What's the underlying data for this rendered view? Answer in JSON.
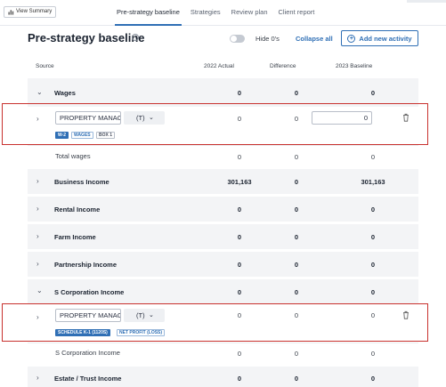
{
  "topbar": {
    "view_summary": "View Summary",
    "tabs": [
      "Pre-strategy baseline",
      "Strategies",
      "Review plan",
      "Client report"
    ]
  },
  "heading": {
    "title": "Pre-strategy baseline",
    "info": "i",
    "hide_zeros": "Hide 0's",
    "collapse_all": "Collapse all",
    "add_activity": "Add new activity"
  },
  "columns": {
    "source": "Source",
    "actual": "2022 Actual",
    "difference": "Difference",
    "baseline": "2023 Baseline"
  },
  "wages": {
    "label": "Wages",
    "actual": "0",
    "difference": "0",
    "baseline": "0",
    "activity": {
      "name": "PROPERTY MANAG",
      "type": "(T)",
      "actual": "0",
      "difference": "0",
      "baseline": "0",
      "badges": [
        "W-2",
        "WAGES",
        "BOX 1"
      ]
    },
    "total_label": "Total wages",
    "total": {
      "actual": "0",
      "difference": "0",
      "baseline": "0"
    }
  },
  "business": {
    "label": "Business Income",
    "actual": "301,163",
    "difference": "0",
    "baseline": "301,163"
  },
  "rental": {
    "label": "Rental Income",
    "actual": "0",
    "difference": "0",
    "baseline": "0"
  },
  "farm": {
    "label": "Farm Income",
    "actual": "0",
    "difference": "0",
    "baseline": "0"
  },
  "partnership": {
    "label": "Partnership Income",
    "actual": "0",
    "difference": "0",
    "baseline": "0"
  },
  "scorp": {
    "label": "S Corporation Income",
    "actual": "0",
    "difference": "0",
    "baseline": "0",
    "activity": {
      "name": "PROPERTY MANAG",
      "type": "(T)",
      "actual": "0",
      "difference": "0",
      "baseline": "0",
      "badges": [
        "SCHEDULE K-1 (1120S)",
        "NET PROFIT (LOSS)"
      ]
    },
    "total_label": "S Corporation Income",
    "total": {
      "actual": "0",
      "difference": "0",
      "baseline": "0"
    }
  },
  "estate": {
    "label": "Estate / Trust Income",
    "actual": "0",
    "difference": "0",
    "baseline": "0"
  },
  "colors": {
    "accent": "#2f6fb5",
    "highlight": "#c8312e",
    "group_bg": "#f3f4f6"
  }
}
